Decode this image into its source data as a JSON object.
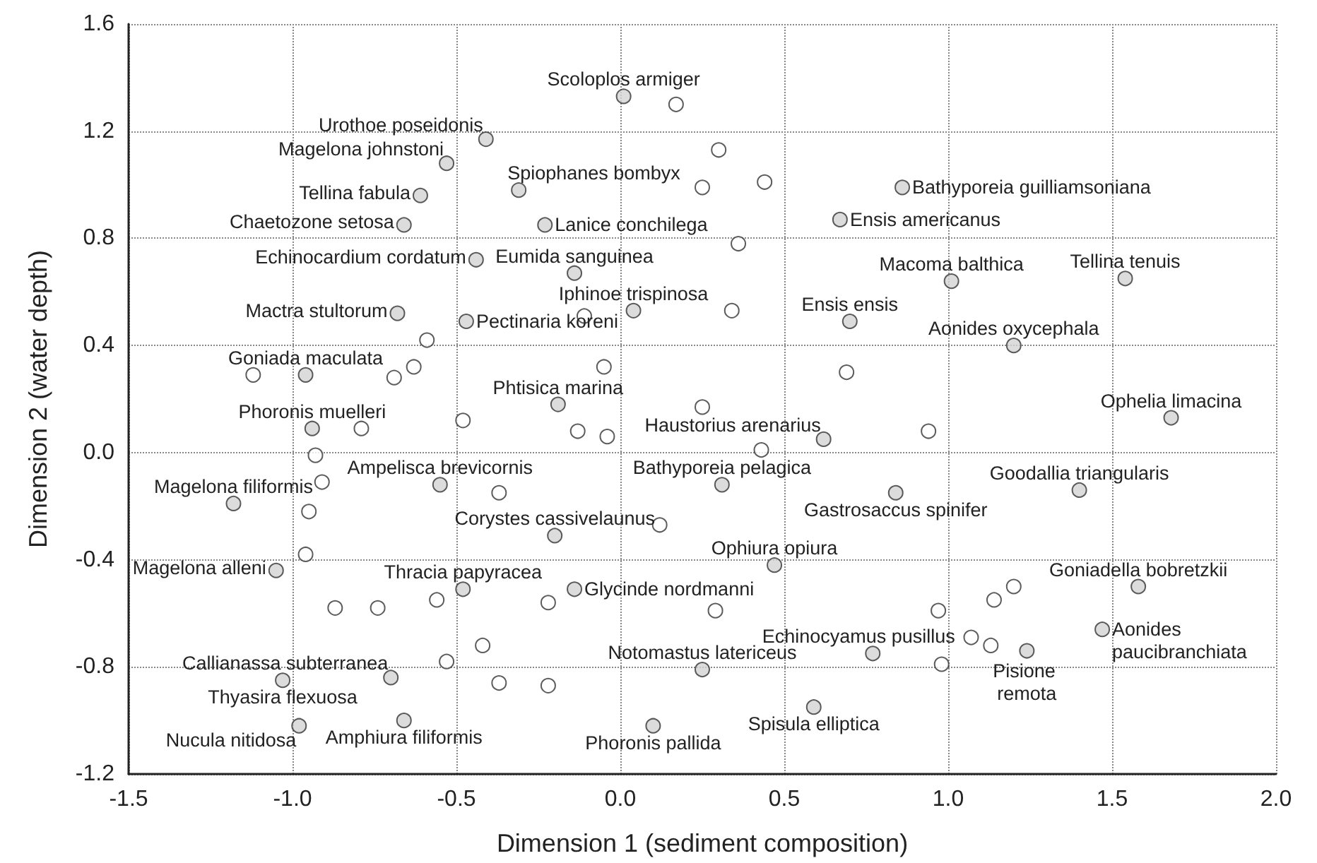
{
  "chart_data": {
    "type": "scatter",
    "xlabel": "Dimension 1 (sediment composition)",
    "ylabel": "Dimension 2 (water depth)",
    "xlim": [
      -1.5,
      2.0
    ],
    "ylim": [
      -1.2,
      1.6
    ],
    "xticks": [
      {
        "value": -1.5,
        "label": "-1.5"
      },
      {
        "value": -1,
        "label": "-1.0"
      },
      {
        "value": -0.5,
        "label": "-0.5"
      },
      {
        "value": 0,
        "label": "0.0"
      },
      {
        "value": 0.5,
        "label": "0.5"
      },
      {
        "value": 1,
        "label": "1.0"
      },
      {
        "value": 1.5,
        "label": "1.5"
      },
      {
        "value": 2,
        "label": "2.0"
      }
    ],
    "yticks": [
      {
        "value": -1.2,
        "label": "-1.2"
      },
      {
        "value": -0.8,
        "label": "-0.8"
      },
      {
        "value": -0.4,
        "label": "-0.4"
      },
      {
        "value": 0,
        "label": "0.0"
      },
      {
        "value": 0.4,
        "label": "0.4"
      },
      {
        "value": 0.8,
        "label": "0.8"
      },
      {
        "value": 1.2,
        "label": "1.2"
      },
      {
        "value": 1.6,
        "label": "1.6"
      }
    ],
    "grid": true,
    "marker": "circle",
    "series": [
      {
        "color": "#d3d3d3",
        "x": [
          0.01,
          -0.41,
          -0.53,
          -0.31,
          0.86,
          -0.61,
          -0.66,
          -0.23,
          0.67,
          -0.44,
          -0.14,
          1.01,
          1.54,
          0.04,
          -0.68,
          -0.47,
          0.7,
          1.2,
          -0.96,
          -0.19,
          1.68,
          -0.94,
          0.62,
          -0.55,
          -1.18,
          0.31,
          1.4,
          0.84,
          -0.2,
          -1.05,
          0.47,
          -0.48,
          -0.14,
          1.58,
          0.77,
          1.47,
          -0.7,
          0.25,
          1.24,
          -1.03,
          0.59,
          -0.66,
          -0.98,
          0.1
        ],
        "values": [
          1.33,
          1.17,
          1.08,
          0.98,
          0.99,
          0.96,
          0.85,
          0.85,
          0.87,
          0.72,
          0.67,
          0.64,
          0.65,
          0.53,
          0.52,
          0.49,
          0.49,
          0.4,
          0.29,
          0.18,
          0.13,
          0.09,
          0.05,
          -0.12,
          -0.19,
          -0.12,
          -0.14,
          -0.15,
          -0.31,
          -0.44,
          -0.42,
          -0.51,
          -0.51,
          -0.5,
          -0.75,
          -0.66,
          -0.84,
          -0.81,
          -0.74,
          -0.85,
          -0.95,
          -1.0,
          -1.02,
          -1.02
        ]
      },
      {
        "color": "#ffffff",
        "x": [
          0.17,
          0.3,
          0.25,
          0.44,
          0.36,
          -0.11,
          0.34,
          -0.59,
          -0.63,
          -1.12,
          -0.69,
          -0.48,
          -0.05,
          0.69,
          0.25,
          -0.79,
          -0.93,
          -0.91,
          -0.37,
          -0.95,
          -0.96,
          -0.56,
          -0.87,
          -0.74,
          -0.42,
          -0.53,
          -0.37,
          -0.13,
          -0.04,
          0.43,
          0.12,
          -0.22,
          0.29,
          -0.22,
          0.94,
          1.2,
          1.14,
          0.97,
          1.07,
          1.13,
          0.98
        ],
        "values": [
          1.3,
          1.13,
          0.99,
          1.01,
          0.78,
          0.51,
          0.53,
          0.42,
          0.32,
          0.29,
          0.28,
          0.12,
          0.32,
          0.3,
          0.17,
          0.09,
          -0.01,
          -0.11,
          -0.15,
          -0.22,
          -0.38,
          -0.55,
          -0.58,
          -0.58,
          -0.72,
          -0.78,
          -0.86,
          0.08,
          0.06,
          0.01,
          -0.27,
          -0.56,
          -0.59,
          -0.87,
          0.08,
          -0.5,
          -0.55,
          -0.59,
          -0.69,
          -0.72,
          -0.79
        ]
      }
    ],
    "annotations": [
      {
        "text": "Scoloplos armiger",
        "x": 0.01,
        "y": 1.33
      },
      {
        "text": "Urothoe poseidonis",
        "x": -0.41,
        "y": 1.17
      },
      {
        "text": "Magelona johnstoni",
        "x": -0.53,
        "y": 1.08
      },
      {
        "text": "Spiophanes bombyx",
        "x": -0.31,
        "y": 0.98
      },
      {
        "text": "Bathyporeia guilliamsoniana",
        "x": 0.86,
        "y": 0.99
      },
      {
        "text": "Tellina fabula",
        "x": -0.61,
        "y": 0.96
      },
      {
        "text": "Chaetozone setosa",
        "x": -0.66,
        "y": 0.85
      },
      {
        "text": "Lanice conchilega",
        "x": -0.23,
        "y": 0.85
      },
      {
        "text": "Ensis americanus",
        "x": 0.67,
        "y": 0.87
      },
      {
        "text": "Echinocardium cordatum",
        "x": -0.44,
        "y": 0.72
      },
      {
        "text": "Eumida sanguinea",
        "x": -0.14,
        "y": 0.67
      },
      {
        "text": "Macoma balthica",
        "x": 1.01,
        "y": 0.64
      },
      {
        "text": "Tellina tenuis",
        "x": 1.54,
        "y": 0.65
      },
      {
        "text": "Iphinoe trispinosa",
        "x": 0.04,
        "y": 0.53
      },
      {
        "text": "Mactra stultorum",
        "x": -0.68,
        "y": 0.52
      },
      {
        "text": "Pectinaria koreni",
        "x": -0.47,
        "y": 0.49
      },
      {
        "text": "Ensis ensis",
        "x": 0.7,
        "y": 0.49
      },
      {
        "text": "Aonides oxycephala",
        "x": 1.2,
        "y": 0.4
      },
      {
        "text": "Goniada maculata",
        "x": -0.96,
        "y": 0.29
      },
      {
        "text": "Phtisica marina",
        "x": -0.19,
        "y": 0.18
      },
      {
        "text": "Ophelia limacina",
        "x": 1.68,
        "y": 0.13
      },
      {
        "text": "Phoronis muelleri",
        "x": -0.94,
        "y": 0.09
      },
      {
        "text": "Haustorius arenarius",
        "x": 0.62,
        "y": 0.05
      },
      {
        "text": "Ampelisca brevicornis",
        "x": -0.55,
        "y": -0.12
      },
      {
        "text": "Magelona filiformis",
        "x": -1.18,
        "y": -0.19
      },
      {
        "text": "Bathyporeia pelagica",
        "x": 0.31,
        "y": -0.12
      },
      {
        "text": "Goodallia triangularis",
        "x": 1.4,
        "y": -0.14
      },
      {
        "text": "Gastrosaccus spinifer",
        "x": 0.84,
        "y": -0.15
      },
      {
        "text": "Corystes cassivelaunus",
        "x": -0.2,
        "y": -0.31
      },
      {
        "text": "Magelona alleni",
        "x": -1.05,
        "y": -0.44
      },
      {
        "text": "Ophiura opiura",
        "x": 0.47,
        "y": -0.42
      },
      {
        "text": "Thracia papyracea",
        "x": -0.48,
        "y": -0.51
      },
      {
        "text": "Glycinde nordmanni",
        "x": -0.14,
        "y": -0.51
      },
      {
        "text": "Goniadella bobretzkii",
        "x": 1.58,
        "y": -0.5
      },
      {
        "text": "Echinocyamus pusillus",
        "x": 0.77,
        "y": -0.75
      },
      {
        "text": "Aonides paucibranchiata",
        "x": 1.47,
        "y": -0.66
      },
      {
        "text": "Callianassa subterranea",
        "x": -0.7,
        "y": -0.84
      },
      {
        "text": "Notomastus latericeus",
        "x": 0.25,
        "y": -0.81
      },
      {
        "text": "Pisione remota",
        "x": 1.24,
        "y": -0.74
      },
      {
        "text": "Thyasira flexuosa",
        "x": -1.03,
        "y": -0.85
      },
      {
        "text": "Spisula elliptica",
        "x": 0.59,
        "y": -0.95
      },
      {
        "text": "Amphiura filiformis",
        "x": -0.66,
        "y": -1.0
      },
      {
        "text": "Nucula nitidosa",
        "x": -0.98,
        "y": -1.02
      },
      {
        "text": "Phoronis pallida",
        "x": 0.1,
        "y": -1.02
      }
    ]
  }
}
